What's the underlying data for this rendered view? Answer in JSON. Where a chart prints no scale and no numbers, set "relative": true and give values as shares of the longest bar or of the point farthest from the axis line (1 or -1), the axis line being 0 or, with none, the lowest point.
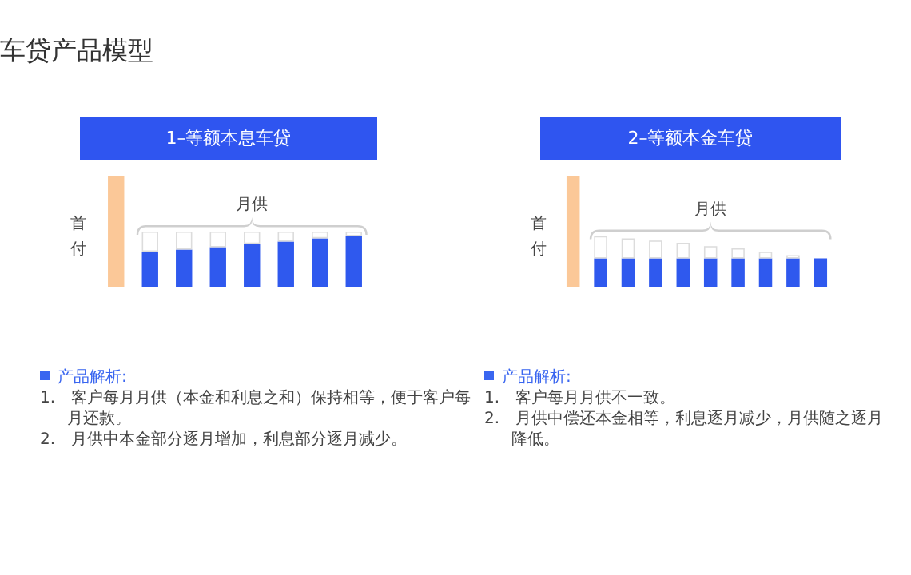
{
  "chart_data": [
    {
      "type": "other",
      "title": "车贷产品模型"
    },
    {
      "type": "bar",
      "title": "1–等额本息车贷",
      "ylabel": "首付",
      "relative": true,
      "stacked": true,
      "categories": [
        null,
        null,
        null,
        null,
        null,
        null,
        null,
        null
      ],
      "series": [
        {
          "color": "#fbc898",
          "values": [
            1,
            null,
            null,
            null,
            null,
            null,
            null,
            null
          ]
        },
        {
          "color": "#2f59ee",
          "values": [
            null,
            0.32,
            0.34,
            0.36,
            0.39,
            0.41,
            0.44,
            0.46
          ]
        },
        {
          "color": "#ffffff",
          "values": [
            null,
            0.18,
            0.16,
            0.14,
            0.11,
            0.09,
            0.06,
            0.04
          ]
        }
      ],
      "annotations": [
        "月供",
        "产品解析:",
        "1.　客户每月月供（本金和利息之和）保持相等，便于客户每月还款。",
        "2.　月供中本金部分逐月增加，利息部分逐月减少。"
      ]
    },
    {
      "type": "bar",
      "title": "2–等额本金车贷",
      "ylabel": "首付",
      "relative": true,
      "stacked": true,
      "categories": [
        null,
        null,
        null,
        null,
        null,
        null,
        null,
        null,
        null,
        null
      ],
      "series": [
        {
          "color": "#fbc898",
          "values": [
            1,
            null,
            null,
            null,
            null,
            null,
            null,
            null,
            null,
            null
          ]
        },
        {
          "color": "#2f59ee",
          "values": [
            null,
            0.26,
            0.26,
            0.26,
            0.26,
            0.26,
            0.26,
            0.26,
            0.26,
            0.26
          ]
        },
        {
          "color": "#ffffff",
          "values": [
            null,
            0.2,
            0.18,
            0.16,
            0.14,
            0.11,
            0.09,
            0.06,
            0.03,
            null
          ]
        }
      ],
      "annotations": [
        "月供",
        "产品解析:",
        "1.　客户每月月供不一致。",
        "2.　月供中偿还本金相等，利息逐月减少，月供随之逐月降低。"
      ]
    }
  ]
}
